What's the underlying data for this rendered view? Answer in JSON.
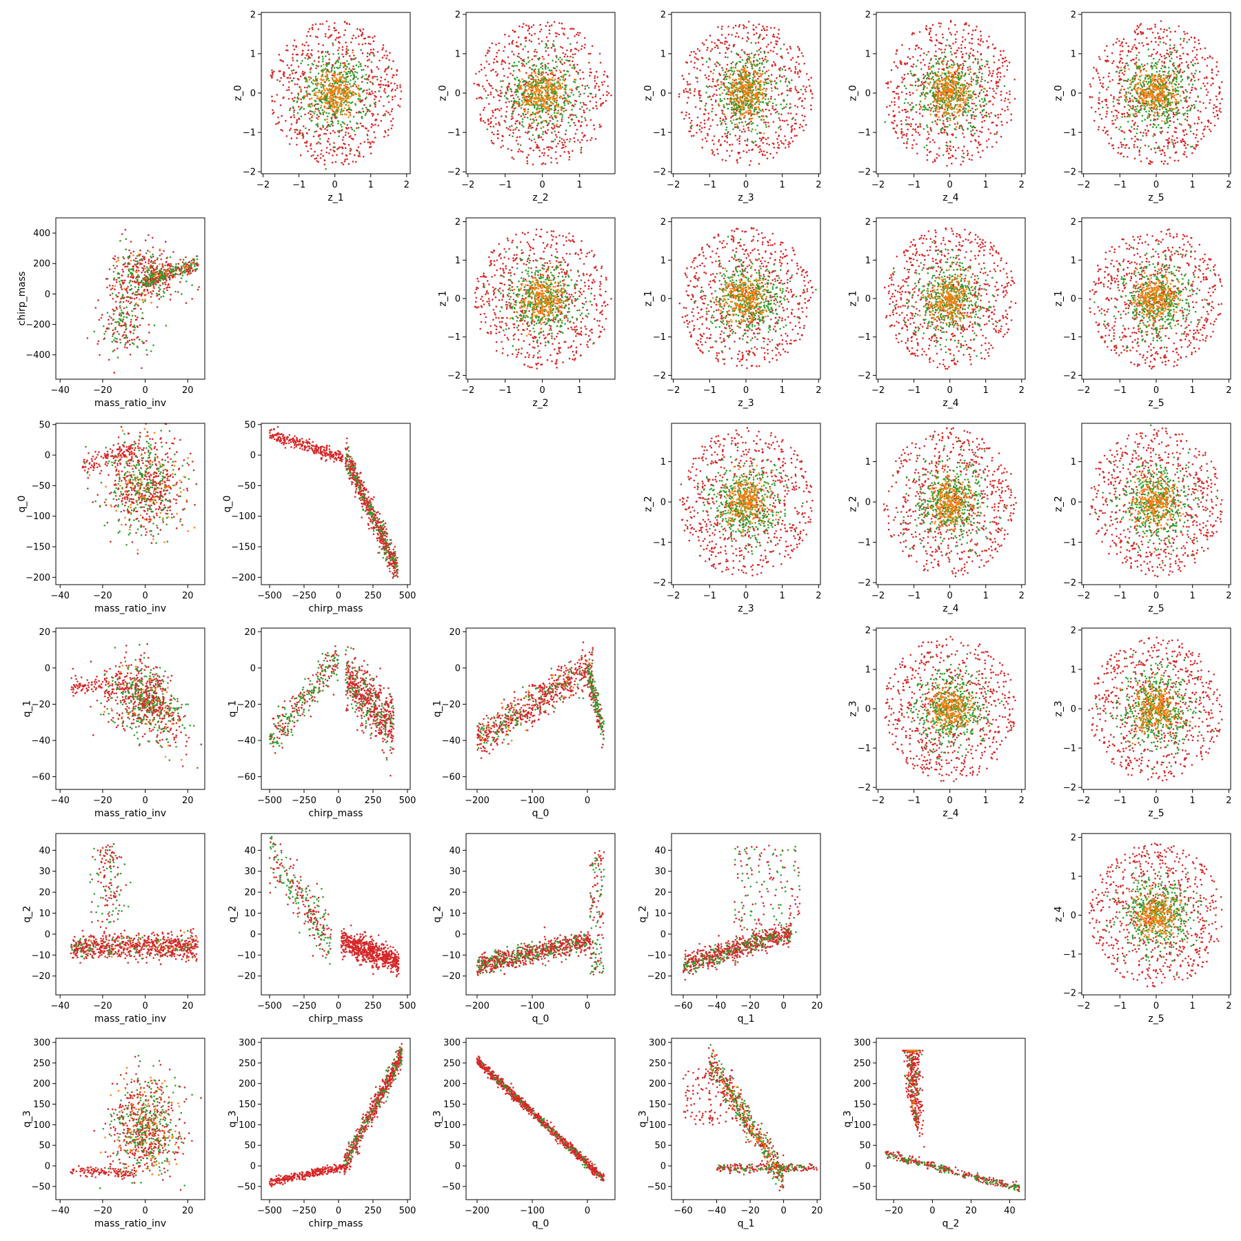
{
  "colors": {
    "red": "#d62728",
    "green": "#2ca02c",
    "orange": "#ff7f0e",
    "frame": "#000000"
  },
  "chart_data": [
    {
      "type": "scatter",
      "xlabel": "z_1",
      "ylabel": "z_0",
      "xlim": [
        -2.05,
        2.1
      ],
      "ylim": [
        -2.05,
        2.05
      ],
      "xticks": [
        -2,
        -1,
        0,
        1,
        2
      ],
      "yticks": [
        -2,
        -1,
        0,
        1,
        2
      ],
      "pattern": "blob"
    },
    {
      "type": "scatter",
      "xlabel": "z_2",
      "ylabel": "z_0",
      "xlim": [
        -2.05,
        1.95
      ],
      "ylim": [
        -2.05,
        2.05
      ],
      "xticks": [
        -2,
        -1,
        0,
        1
      ],
      "yticks": [
        -2,
        -1,
        0,
        1,
        2
      ],
      "pattern": "blob"
    },
    {
      "type": "scatter",
      "xlabel": "z_3",
      "ylabel": "z_0",
      "xlim": [
        -2.05,
        2.05
      ],
      "ylim": [
        -2.05,
        2.05
      ],
      "xticks": [
        -2,
        -1,
        0,
        1,
        2
      ],
      "yticks": [
        -2,
        -1,
        0,
        1,
        2
      ],
      "pattern": "blob"
    },
    {
      "type": "scatter",
      "xlabel": "z_4",
      "ylabel": "z_0",
      "xlim": [
        -2.05,
        2.1
      ],
      "ylim": [
        -2.05,
        2.05
      ],
      "xticks": [
        -2,
        -1,
        0,
        1,
        2
      ],
      "yticks": [
        -2,
        -1,
        0,
        1,
        2
      ],
      "pattern": "blob"
    },
    {
      "type": "scatter",
      "xlabel": "z_5",
      "ylabel": "z_0",
      "xlim": [
        -2.05,
        2.05
      ],
      "ylim": [
        -2.05,
        2.05
      ],
      "xticks": [
        -2,
        -1,
        0,
        1,
        2
      ],
      "yticks": [
        -2,
        -1,
        0,
        1,
        2
      ],
      "pattern": "blob"
    },
    {
      "type": "scatter",
      "xlabel": "mass_ratio_inv",
      "ylabel": "chirp_mass",
      "xlim": [
        -42,
        28
      ],
      "ylim": [
        -560,
        500
      ],
      "xticks": [
        -40,
        -20,
        0,
        20
      ],
      "yticks": [
        -400,
        -200,
        0,
        200,
        400
      ],
      "pattern": "mr_cm"
    },
    {
      "type": "scatter",
      "xlabel": "z_2",
      "ylabel": "z_1",
      "xlim": [
        -2.05,
        1.95
      ],
      "ylim": [
        -2.1,
        2.1
      ],
      "xticks": [
        -2,
        -1,
        0,
        1
      ],
      "yticks": [
        -2,
        -1,
        0,
        1,
        2
      ],
      "pattern": "blob"
    },
    {
      "type": "scatter",
      "xlabel": "z_3",
      "ylabel": "z_1",
      "xlim": [
        -2.05,
        2.05
      ],
      "ylim": [
        -2.1,
        2.1
      ],
      "xticks": [
        -2,
        -1,
        0,
        1,
        2
      ],
      "yticks": [
        -2,
        -1,
        0,
        1,
        2
      ],
      "pattern": "blob"
    },
    {
      "type": "scatter",
      "xlabel": "z_4",
      "ylabel": "z_1",
      "xlim": [
        -2.05,
        2.1
      ],
      "ylim": [
        -2.1,
        2.1
      ],
      "xticks": [
        -2,
        -1,
        0,
        1,
        2
      ],
      "yticks": [
        -2,
        -1,
        0,
        1,
        2
      ],
      "pattern": "blob"
    },
    {
      "type": "scatter",
      "xlabel": "z_5",
      "ylabel": "z_1",
      "xlim": [
        -2.05,
        2.05
      ],
      "ylim": [
        -2.1,
        2.1
      ],
      "xticks": [
        -2,
        -1,
        0,
        1,
        2
      ],
      "yticks": [
        -2,
        -1,
        0,
        1,
        2
      ],
      "pattern": "blob"
    },
    {
      "type": "scatter",
      "xlabel": "mass_ratio_inv",
      "ylabel": "q_0",
      "xlim": [
        -42,
        28
      ],
      "ylim": [
        -212,
        52
      ],
      "xticks": [
        -40,
        -20,
        0,
        20
      ],
      "yticks": [
        -200,
        -150,
        -100,
        -50,
        0,
        50
      ],
      "pattern": "mr_q0"
    },
    {
      "type": "scatter",
      "xlabel": "chirp_mass",
      "ylabel": "q_0",
      "xlim": [
        -560,
        520
      ],
      "ylim": [
        -212,
        52
      ],
      "xticks": [
        -500,
        -250,
        0,
        250,
        500
      ],
      "yticks": [
        -200,
        -150,
        -100,
        -50,
        0,
        50
      ],
      "pattern": "cm_q0"
    },
    {
      "type": "scatter",
      "xlabel": "z_3",
      "ylabel": "z_2",
      "xlim": [
        -2.05,
        2.05
      ],
      "ylim": [
        -2.05,
        1.95
      ],
      "xticks": [
        -2,
        -1,
        0,
        1,
        2
      ],
      "yticks": [
        -2,
        -1,
        0,
        1
      ],
      "pattern": "blob"
    },
    {
      "type": "scatter",
      "xlabel": "z_4",
      "ylabel": "z_2",
      "xlim": [
        -2.05,
        2.1
      ],
      "ylim": [
        -2.05,
        1.95
      ],
      "xticks": [
        -2,
        -1,
        0,
        1,
        2
      ],
      "yticks": [
        -2,
        -1,
        0,
        1
      ],
      "pattern": "blob"
    },
    {
      "type": "scatter",
      "xlabel": "z_5",
      "ylabel": "z_2",
      "xlim": [
        -2.05,
        2.05
      ],
      "ylim": [
        -2.05,
        1.95
      ],
      "xticks": [
        -2,
        -1,
        0,
        1,
        2
      ],
      "yticks": [
        -2,
        -1,
        0,
        1
      ],
      "pattern": "blob"
    },
    {
      "type": "scatter",
      "xlabel": "mass_ratio_inv",
      "ylabel": "q_1",
      "xlim": [
        -42,
        28
      ],
      "ylim": [
        -67,
        22
      ],
      "xticks": [
        -40,
        -20,
        0,
        20
      ],
      "yticks": [
        -60,
        -40,
        -20,
        0,
        20
      ],
      "pattern": "mr_q1"
    },
    {
      "type": "scatter",
      "xlabel": "chirp_mass",
      "ylabel": "q_1",
      "xlim": [
        -560,
        520
      ],
      "ylim": [
        -67,
        22
      ],
      "xticks": [
        -500,
        -250,
        0,
        250,
        500
      ],
      "yticks": [
        -60,
        -40,
        -20,
        0,
        20
      ],
      "pattern": "cm_q1"
    },
    {
      "type": "scatter",
      "xlabel": "q_0",
      "ylabel": "q_1",
      "xlim": [
        -220,
        50
      ],
      "ylim": [
        -67,
        22
      ],
      "xticks": [
        -200,
        -100,
        0
      ],
      "yticks": [
        -60,
        -40,
        -20,
        0,
        20
      ],
      "pattern": "q0_q1"
    },
    {
      "type": "scatter",
      "xlabel": "z_4",
      "ylabel": "z_3",
      "xlim": [
        -2.05,
        2.1
      ],
      "ylim": [
        -2.05,
        2.05
      ],
      "xticks": [
        -2,
        -1,
        0,
        1,
        2
      ],
      "yticks": [
        -2,
        -1,
        0,
        1,
        2
      ],
      "pattern": "blob"
    },
    {
      "type": "scatter",
      "xlabel": "z_5",
      "ylabel": "z_3",
      "xlim": [
        -2.05,
        2.05
      ],
      "ylim": [
        -2.05,
        2.05
      ],
      "xticks": [
        -2,
        -1,
        0,
        1,
        2
      ],
      "yticks": [
        -2,
        -1,
        0,
        1,
        2
      ],
      "pattern": "blob"
    },
    {
      "type": "scatter",
      "xlabel": "mass_ratio_inv",
      "ylabel": "q_2",
      "xlim": [
        -42,
        28
      ],
      "ylim": [
        -29,
        48
      ],
      "xticks": [
        -40,
        -20,
        0,
        20
      ],
      "yticks": [
        -20,
        -10,
        0,
        10,
        20,
        30,
        40
      ],
      "pattern": "mr_q2"
    },
    {
      "type": "scatter",
      "xlabel": "chirp_mass",
      "ylabel": "q_2",
      "xlim": [
        -560,
        520
      ],
      "ylim": [
        -29,
        48
      ],
      "xticks": [
        -500,
        -250,
        0,
        250,
        500
      ],
      "yticks": [
        -20,
        -10,
        0,
        10,
        20,
        30,
        40
      ],
      "pattern": "cm_q2"
    },
    {
      "type": "scatter",
      "xlabel": "q_0",
      "ylabel": "q_2",
      "xlim": [
        -220,
        50
      ],
      "ylim": [
        -29,
        48
      ],
      "xticks": [
        -200,
        -100,
        0
      ],
      "yticks": [
        -20,
        -10,
        0,
        10,
        20,
        30,
        40
      ],
      "pattern": "q0_q2"
    },
    {
      "type": "scatter",
      "xlabel": "q_1",
      "ylabel": "q_2",
      "xlim": [
        -67,
        22
      ],
      "ylim": [
        -29,
        48
      ],
      "xticks": [
        -60,
        -40,
        -20,
        0,
        20
      ],
      "yticks": [
        -20,
        -10,
        0,
        10,
        20,
        30,
        40
      ],
      "pattern": "q1_q2"
    },
    {
      "type": "scatter",
      "xlabel": "z_5",
      "ylabel": "z_4",
      "xlim": [
        -2.05,
        2.05
      ],
      "ylim": [
        -2.05,
        2.1
      ],
      "xticks": [
        -2,
        -1,
        0,
        1,
        2
      ],
      "yticks": [
        -2,
        -1,
        0,
        1,
        2
      ],
      "pattern": "blob"
    },
    {
      "type": "scatter",
      "xlabel": "mass_ratio_inv",
      "ylabel": "q_3",
      "xlim": [
        -42,
        28
      ],
      "ylim": [
        -82,
        310
      ],
      "xticks": [
        -40,
        -20,
        0,
        20
      ],
      "yticks": [
        -50,
        0,
        50,
        100,
        150,
        200,
        250,
        300
      ],
      "pattern": "mr_q3"
    },
    {
      "type": "scatter",
      "xlabel": "chirp_mass",
      "ylabel": "q_3",
      "xlim": [
        -560,
        520
      ],
      "ylim": [
        -82,
        310
      ],
      "xticks": [
        -500,
        -250,
        0,
        250,
        500
      ],
      "yticks": [
        -50,
        0,
        50,
        100,
        150,
        200,
        250,
        300
      ],
      "pattern": "cm_q3"
    },
    {
      "type": "scatter",
      "xlabel": "q_0",
      "ylabel": "q_3",
      "xlim": [
        -220,
        50
      ],
      "ylim": [
        -82,
        310
      ],
      "xticks": [
        -200,
        -100,
        0
      ],
      "yticks": [
        -50,
        0,
        50,
        100,
        150,
        200,
        250,
        300
      ],
      "pattern": "q0_q3"
    },
    {
      "type": "scatter",
      "xlabel": "q_1",
      "ylabel": "q_3",
      "xlim": [
        -67,
        22
      ],
      "ylim": [
        -82,
        310
      ],
      "xticks": [
        -60,
        -40,
        -20,
        0,
        20
      ],
      "yticks": [
        -50,
        0,
        50,
        100,
        150,
        200,
        250,
        300
      ],
      "pattern": "q1_q3"
    },
    {
      "type": "scatter",
      "xlabel": "q_2",
      "ylabel": "q_3",
      "xlim": [
        -29,
        48
      ],
      "ylim": [
        -82,
        310
      ],
      "xticks": [
        -20,
        0,
        20,
        40
      ],
      "yticks": [
        -50,
        0,
        50,
        100,
        150,
        200,
        250,
        300
      ],
      "pattern": "q2_q3"
    }
  ]
}
